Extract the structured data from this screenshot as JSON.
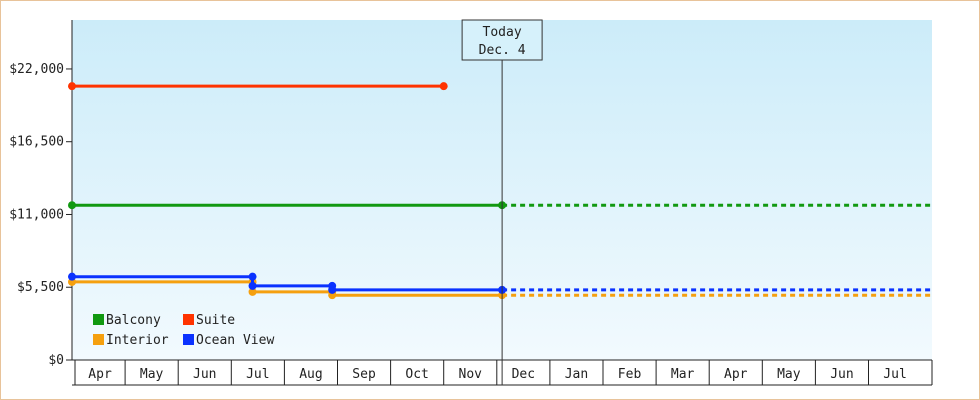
{
  "chart_data": {
    "type": "line",
    "y_tick_labels": [
      "$0",
      "$5,500",
      "$11,000",
      "$16,500",
      "$22,000"
    ],
    "y_ticks": [
      0,
      5500,
      11000,
      16500,
      22000
    ],
    "ylim": [
      0,
      25700
    ],
    "x_tick_labels": [
      "Apr",
      "May",
      "Jun",
      "Jul",
      "Aug",
      "Sep",
      "Oct",
      "Nov",
      "Dec",
      "Jan",
      "Feb",
      "Mar",
      "Apr",
      "May",
      "Jun",
      "Jul"
    ],
    "today_marker": {
      "line1": "Today",
      "line2": "Dec. 4",
      "month_index": 8.1
    },
    "grid": false,
    "legend_placement": "bottom-left",
    "series": [
      {
        "name": "Balcony",
        "color": "#119911",
        "solid": [
          [
            0,
            11700
          ],
          [
            8.1,
            11700
          ]
        ],
        "dashed": [
          [
            8.1,
            11700
          ],
          [
            16.2,
            11700
          ]
        ]
      },
      {
        "name": "Suite",
        "color": "#ff3300",
        "solid": [
          [
            0,
            20700
          ],
          [
            7.0,
            20700
          ]
        ],
        "dashed": []
      },
      {
        "name": "Interior",
        "color": "#f5a00f",
        "solid": [
          [
            0,
            5900
          ],
          [
            3.4,
            5900
          ],
          [
            3.4,
            5150
          ],
          [
            4.9,
            5150
          ],
          [
            4.9,
            4900
          ],
          [
            8.1,
            4900
          ]
        ],
        "dashed": [
          [
            8.1,
            4900
          ],
          [
            16.2,
            4900
          ]
        ]
      },
      {
        "name": "Ocean View",
        "color": "#0a32ff",
        "solid": [
          [
            0,
            6300
          ],
          [
            3.4,
            6300
          ],
          [
            3.4,
            5600
          ],
          [
            4.9,
            5600
          ],
          [
            4.9,
            5300
          ],
          [
            8.1,
            5300
          ]
        ],
        "dashed": [
          [
            8.1,
            5300
          ],
          [
            16.2,
            5300
          ]
        ]
      }
    ]
  }
}
